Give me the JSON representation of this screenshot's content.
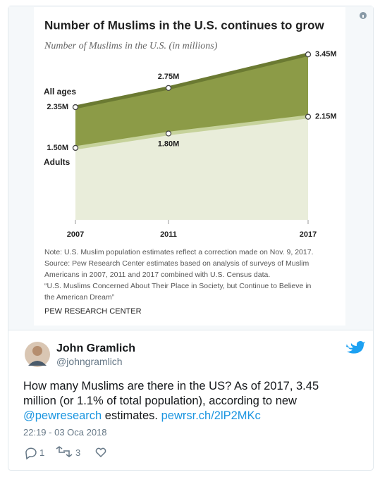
{
  "chart_data": {
    "type": "area",
    "title": "Number of Muslims in the U.S. continues to grow",
    "subtitle": "Number of Muslims in the U.S. (in millions)",
    "x": [
      2007,
      2011,
      2017
    ],
    "xlim": [
      2007,
      2017
    ],
    "xticks": [
      2007,
      2011,
      2017
    ],
    "ylim": [
      0,
      3.6
    ],
    "series": [
      {
        "name": "All ages",
        "color": "#8c9b47",
        "line_color": "#6b7a32",
        "values": [
          2.35,
          2.75,
          3.45
        ],
        "value_labels": [
          "2.35M",
          "2.75M",
          "3.45M"
        ]
      },
      {
        "name": "Adults",
        "color": "#e9edda",
        "line_color": "#c6d29b",
        "values": [
          1.5,
          1.8,
          2.15
        ],
        "value_labels": [
          "1.50M",
          "1.80M",
          "2.15M"
        ]
      }
    ],
    "notes": [
      "Note: U.S. Muslim population estimates reflect a correction made on Nov. 9, 2017.",
      "Source: Pew Research Center estimates based on analysis of surveys of Muslim",
      "Americans in 2007, 2011 and 2017 combined with U.S. Census data.",
      "“U.S. Muslims Concerned About Their Place in Society, but Continue to Believe in",
      "the American Dream”"
    ],
    "source": "PEW RESEARCH CENTER"
  },
  "tweet": {
    "name": "John Gramlich",
    "handle": "@johngramlich",
    "text": [
      "How many Muslims are there in the US? As of 2017, 3.45 million (or 1.1% of total population), according to new ",
      "@pewresearch",
      " estimates. ",
      "pewrsr.ch/2lP2MKc"
    ],
    "time": "22:19 - 03 Oca 2018",
    "replies": 1,
    "retweets": 3
  }
}
